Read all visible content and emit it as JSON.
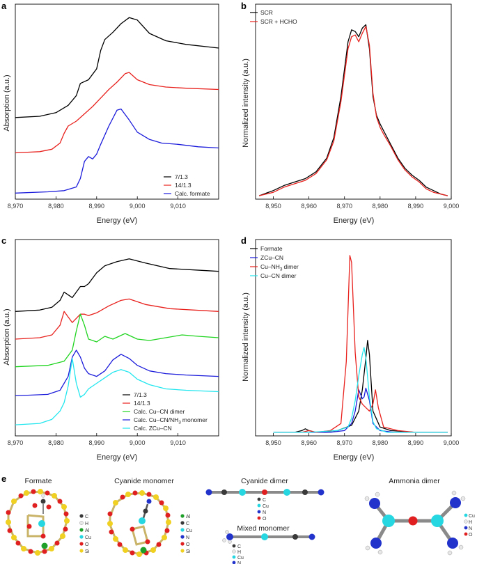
{
  "chart_data": [
    {
      "panel": "a",
      "type": "line",
      "xlabel": "Energy (eV)",
      "ylabel": "Absorption (a.u.)",
      "xlim": [
        8970,
        9020
      ],
      "xticks": [
        "8,970",
        "8,980",
        "8,990",
        "9,000",
        "9,010"
      ],
      "series": [
        {
          "name": "7/1.3",
          "color": "#000000",
          "offset": 0.62,
          "x": [
            8970,
            8976,
            8980,
            8983,
            8985,
            8986,
            8988,
            8990,
            8991,
            8992,
            8994,
            8996,
            8998,
            9000,
            9003,
            9007,
            9012,
            9020
          ],
          "y": [
            0.0,
            0.01,
            0.04,
            0.1,
            0.18,
            0.28,
            0.31,
            0.4,
            0.55,
            0.64,
            0.7,
            0.77,
            0.82,
            0.8,
            0.69,
            0.63,
            0.6,
            0.57
          ]
        },
        {
          "name": "14/1.3",
          "color": "#e8211d",
          "offset": 0.33,
          "x": [
            8970,
            8976,
            8979,
            8981,
            8982,
            8983,
            8985,
            8987,
            8989,
            8991,
            8993,
            8995,
            8997,
            8998,
            9000,
            9003,
            9007,
            9012,
            9020
          ],
          "y": [
            0.0,
            0.01,
            0.03,
            0.08,
            0.16,
            0.22,
            0.26,
            0.32,
            0.38,
            0.45,
            0.52,
            0.58,
            0.65,
            0.66,
            0.6,
            0.56,
            0.54,
            0.53,
            0.52
          ]
        },
        {
          "name": "Calc. formate",
          "color": "#1a1adb",
          "offset": 0.0,
          "x": [
            8970,
            8978,
            8982,
            8985,
            8986,
            8987,
            8988,
            8989,
            8990,
            8991,
            8993,
            8995,
            8996,
            8998,
            9000,
            9003,
            9006,
            9010,
            9015,
            9020
          ],
          "y": [
            0.0,
            0.01,
            0.02,
            0.05,
            0.12,
            0.26,
            0.3,
            0.28,
            0.32,
            0.4,
            0.55,
            0.68,
            0.69,
            0.6,
            0.5,
            0.44,
            0.41,
            0.4,
            0.38,
            0.37
          ]
        }
      ]
    },
    {
      "panel": "b",
      "type": "line",
      "xlabel": "Energy (eV)",
      "ylabel": "Normalized intensity (a.u.)",
      "xlim": [
        8945,
        9000
      ],
      "xticks": [
        "8,950",
        "8,960",
        "8,970",
        "8,980",
        "8,990",
        "9,000"
      ],
      "series": [
        {
          "name": "SCR",
          "color": "#000000",
          "x": [
            8946,
            8950,
            8953,
            8956,
            8959,
            8962,
            8965,
            8967,
            8969,
            8971,
            8972,
            8973,
            8974,
            8975,
            8976,
            8977,
            8978,
            8979,
            8980,
            8981,
            8983,
            8985,
            8987,
            8989,
            8991,
            8993,
            8995,
            8997,
            8999
          ],
          "y": [
            0.0,
            0.03,
            0.06,
            0.08,
            0.1,
            0.14,
            0.22,
            0.34,
            0.58,
            0.9,
            0.97,
            0.96,
            0.93,
            0.98,
            1.0,
            0.86,
            0.58,
            0.47,
            0.42,
            0.38,
            0.3,
            0.22,
            0.16,
            0.12,
            0.09,
            0.05,
            0.03,
            0.01,
            0.0
          ]
        },
        {
          "name": "SCR + HCHO",
          "color": "#e8211d",
          "x": [
            8946,
            8950,
            8953,
            8956,
            8959,
            8962,
            8965,
            8967,
            8969,
            8971,
            8972,
            8973,
            8974,
            8975,
            8976,
            8977,
            8978,
            8979,
            8980,
            8981,
            8983,
            8985,
            8987,
            8989,
            8991,
            8993,
            8995,
            8997,
            8999
          ],
          "y": [
            0.0,
            0.02,
            0.05,
            0.07,
            0.09,
            0.13,
            0.21,
            0.32,
            0.55,
            0.86,
            0.93,
            0.94,
            0.9,
            0.95,
            0.99,
            0.88,
            0.6,
            0.46,
            0.4,
            0.36,
            0.29,
            0.21,
            0.15,
            0.11,
            0.08,
            0.04,
            0.02,
            0.01,
            0.0
          ]
        }
      ]
    },
    {
      "panel": "c",
      "type": "line",
      "xlabel": "Energy (eV)",
      "ylabel": "Absorption (a.u.)",
      "xlim": [
        8970,
        9020
      ],
      "xticks": [
        "8,970",
        "8,980",
        "8,990",
        "9,000",
        "9,010"
      ],
      "series": [
        {
          "name": "7/1.3",
          "color": "#000000",
          "offset": 0.82,
          "x": [
            8970,
            8976,
            8979,
            8981,
            8982,
            8983,
            8984,
            8985,
            8986,
            8987,
            8988,
            8990,
            8992,
            8995,
            8998,
            9002,
            9008,
            9014,
            9020
          ],
          "y": [
            0.0,
            0.01,
            0.03,
            0.08,
            0.14,
            0.12,
            0.1,
            0.14,
            0.18,
            0.18,
            0.2,
            0.28,
            0.33,
            0.36,
            0.38,
            0.35,
            0.31,
            0.3,
            0.29
          ]
        },
        {
          "name": "14/1.3",
          "color": "#e8211d",
          "offset": 0.62,
          "x": [
            8970,
            8976,
            8979,
            8981,
            8982,
            8983,
            8984,
            8985,
            8986,
            8987,
            8988,
            8990,
            8993,
            8996,
            8998,
            9002,
            9008,
            9014,
            9020
          ],
          "y": [
            0.0,
            0.01,
            0.03,
            0.1,
            0.2,
            0.16,
            0.12,
            0.15,
            0.18,
            0.18,
            0.17,
            0.19,
            0.24,
            0.28,
            0.29,
            0.25,
            0.22,
            0.21,
            0.2
          ]
        },
        {
          "name": "Calc. Cu–CN dimer",
          "color": "#1fd41f",
          "offset": 0.42,
          "x": [
            8970,
            8978,
            8982,
            8984,
            8985,
            8986,
            8987,
            8988,
            8990,
            8992,
            8994,
            8997,
            9000,
            9003,
            9007,
            9011,
            9015,
            9020
          ],
          "y": [
            0.0,
            0.01,
            0.04,
            0.12,
            0.26,
            0.38,
            0.3,
            0.2,
            0.18,
            0.22,
            0.2,
            0.24,
            0.2,
            0.19,
            0.21,
            0.23,
            0.22,
            0.21
          ]
        },
        {
          "name": "Calc. Cu–CN/NH3 monomer",
          "color": "#1a1adb",
          "offset": 0.21,
          "x": [
            8970,
            8978,
            8981,
            8983,
            8984,
            8985,
            8986,
            8987,
            8988,
            8990,
            8992,
            8994,
            8996,
            8998,
            9000,
            9003,
            9007,
            9012,
            9020
          ],
          "y": [
            0.0,
            0.01,
            0.04,
            0.14,
            0.28,
            0.33,
            0.28,
            0.2,
            0.16,
            0.14,
            0.18,
            0.26,
            0.3,
            0.27,
            0.22,
            0.18,
            0.16,
            0.15,
            0.14
          ]
        },
        {
          "name": "Calc. ZCu–CN",
          "color": "#22e6ee",
          "offset": 0.0,
          "x": [
            8970,
            8976,
            8979,
            8981,
            8982,
            8983,
            8984,
            8985,
            8986,
            8987,
            8988,
            8990,
            8992,
            8994,
            8996,
            8998,
            9000,
            9003,
            9007,
            9012,
            9020
          ],
          "y": [
            0.0,
            0.01,
            0.04,
            0.1,
            0.16,
            0.28,
            0.48,
            0.3,
            0.2,
            0.22,
            0.26,
            0.3,
            0.34,
            0.38,
            0.4,
            0.38,
            0.33,
            0.29,
            0.26,
            0.25,
            0.24
          ]
        }
      ]
    },
    {
      "panel": "d",
      "type": "line",
      "xlabel": "Energy (eV)",
      "ylabel": "Normalized intensity (a.u.)",
      "xlim": [
        8945,
        9000
      ],
      "xticks": [
        "8,950",
        "8,960",
        "8,970",
        "8,980",
        "8,990",
        "9,000"
      ],
      "series": [
        {
          "name": "Formate",
          "color": "#000000",
          "x": [
            8950,
            8956,
            8958,
            8959,
            8960,
            8962,
            8968,
            8972,
            8974,
            8975,
            8976,
            8976.5,
            8977,
            8978,
            8980,
            8983,
            8990,
            8999
          ],
          "y": [
            0.0,
            0.0,
            0.01,
            0.02,
            0.01,
            0.0,
            0.01,
            0.04,
            0.12,
            0.24,
            0.42,
            0.52,
            0.44,
            0.12,
            0.03,
            0.01,
            0.0,
            0.0
          ]
        },
        {
          "name": "ZCu–CN",
          "color": "#1a1adb",
          "x": [
            8950,
            8958,
            8966,
            8970,
            8972,
            8973,
            8974,
            8975,
            8975.5,
            8976,
            8977,
            8978,
            8980,
            8984,
            8990,
            8999
          ],
          "y": [
            0.0,
            0.0,
            0.0,
            0.01,
            0.05,
            0.12,
            0.24,
            0.19,
            0.2,
            0.25,
            0.18,
            0.05,
            0.01,
            0.0,
            0.0,
            0.0
          ]
        },
        {
          "name": "Cu–NH3 dimer",
          "color": "#e8211d",
          "x": [
            8950,
            8958,
            8960,
            8962,
            8966,
            8969,
            8970.5,
            8971.5,
            8972,
            8973,
            8974,
            8975,
            8976,
            8977,
            8978,
            8978.7,
            8979.5,
            8981,
            8985,
            8990,
            8999
          ],
          "y": [
            0.0,
            0.0,
            0.01,
            0.0,
            0.01,
            0.05,
            0.4,
            1.0,
            0.96,
            0.45,
            0.2,
            0.16,
            0.14,
            0.12,
            0.16,
            0.24,
            0.14,
            0.03,
            0.01,
            0.0,
            0.0
          ]
        },
        {
          "name": "Cu–CN dimer",
          "color": "#22e6ee",
          "x": [
            8950,
            8960,
            8968,
            8971,
            8972,
            8973,
            8974,
            8975,
            8975.5,
            8976,
            8977,
            8978,
            8979,
            8982,
            8990,
            8999
          ],
          "y": [
            0.0,
            0.0,
            0.01,
            0.03,
            0.08,
            0.18,
            0.32,
            0.44,
            0.48,
            0.42,
            0.2,
            0.06,
            0.02,
            0.0,
            0.0,
            0.0
          ]
        }
      ]
    }
  ],
  "panel_letters": {
    "a": "a",
    "b": "b",
    "c": "c",
    "d": "d",
    "e": "e"
  },
  "legends": {
    "a": [
      "7/1.3",
      "14/1.3",
      "Calc. formate"
    ],
    "b": [
      "SCR",
      "SCR + HCHO"
    ],
    "c": [
      "7/1.3",
      "14/1.3",
      "Calc. Cu–CN dimer",
      "Calc. Cu–CN/NH",
      "monomer",
      "Calc. ZCu–CN"
    ],
    "d": [
      "Formate",
      "ZCu–CN",
      "Cu–NH",
      "dimer",
      "Cu–CN dimer"
    ],
    "subscript_3": "3"
  },
  "axis_labels": {
    "energy": "Energy (eV)",
    "absorption": "Absorption (a.u.)",
    "normalized": "Normalized intensity (a.u.)"
  },
  "molecules": {
    "formate": {
      "title": "Formate",
      "elements": [
        "C",
        "H",
        "Al",
        "Cu",
        "O",
        "Si"
      ]
    },
    "cyanide_monomer": {
      "title": "Cyanide monomer",
      "elements": [
        "Al",
        "C",
        "Cu",
        "N",
        "O",
        "Si"
      ]
    },
    "cyanide_dimer": {
      "title": "Cyanide dimer",
      "elements": [
        "C",
        "Cu",
        "N",
        "O"
      ]
    },
    "mixed_monomer": {
      "title": "Mixed monomer",
      "elements": [
        "C",
        "H",
        "Cu",
        "N"
      ]
    },
    "ammonia_dimer": {
      "title": "Ammonia dimer",
      "elements": [
        "Cu",
        "H",
        "N",
        "O"
      ]
    }
  },
  "colors": {
    "C": "#3a3a3a",
    "H": "#e8e8e8",
    "Al": "#1fa02a",
    "Cu": "#26d6e0",
    "O": "#e02020",
    "Si": "#f0d020",
    "N": "#2233cc",
    "bond": "#b0a070"
  }
}
